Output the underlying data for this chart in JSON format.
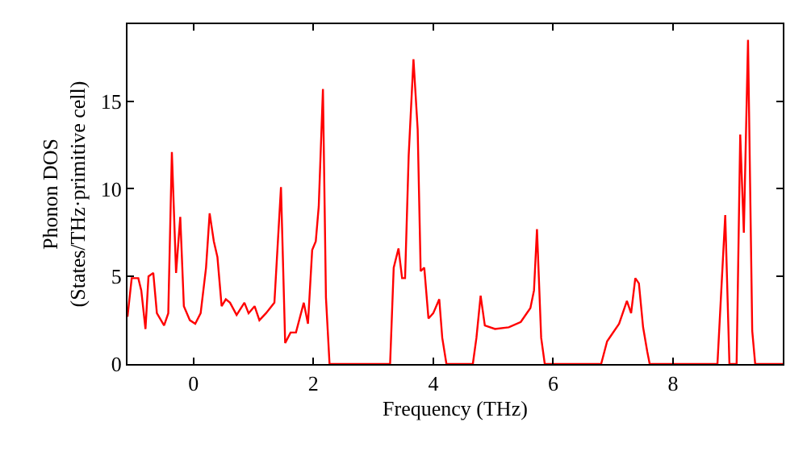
{
  "chart_data": {
    "type": "line",
    "xlabel": "Frequency (THz)",
    "ylabel": "Phonon DOS\n(States/THz·primitive cell)",
    "xlim": [
      -1.1,
      9.83
    ],
    "ylim": [
      0,
      19.4
    ],
    "xticks": [
      0,
      2,
      4,
      6,
      8
    ],
    "yticks": [
      0,
      5,
      10,
      15
    ],
    "marker": "none",
    "line_style": "solid",
    "series": [
      {
        "color": "#ff0000",
        "x": [
          -1.1,
          -1.03,
          -0.92,
          -0.87,
          -0.8,
          -0.75,
          -0.67,
          -0.61,
          -0.49,
          -0.42,
          -0.36,
          -0.29,
          -0.22,
          -0.16,
          -0.06,
          0.03,
          0.12,
          0.21,
          0.27,
          0.34,
          0.4,
          0.47,
          0.54,
          0.61,
          0.72,
          0.85,
          0.92,
          1.02,
          1.1,
          1.21,
          1.35,
          1.46,
          1.53,
          1.62,
          1.71,
          1.84,
          1.91,
          1.98,
          2.04,
          2.09,
          2.16,
          2.21,
          2.27,
          3.28,
          3.34,
          3.42,
          3.48,
          3.53,
          3.59,
          3.67,
          3.74,
          3.79,
          3.85,
          3.92,
          4.0,
          4.1,
          4.15,
          4.22,
          4.66,
          4.72,
          4.79,
          4.86,
          5.03,
          5.26,
          5.46,
          5.62,
          5.68,
          5.73,
          5.8,
          5.86,
          6.8,
          6.9,
          6.96,
          7.1,
          7.23,
          7.3,
          7.37,
          7.43,
          7.5,
          7.57,
          7.61,
          8.74,
          8.87,
          8.94,
          9.06,
          9.12,
          9.18,
          9.25,
          9.32,
          9.37,
          9.83
        ],
        "values": [
          2.7,
          4.9,
          4.9,
          4.2,
          2.0,
          5.0,
          5.2,
          2.9,
          2.2,
          2.9,
          12.1,
          5.2,
          8.4,
          3.3,
          2.5,
          2.3,
          2.9,
          5.5,
          8.6,
          7.0,
          6.1,
          3.3,
          3.7,
          3.5,
          2.8,
          3.5,
          2.9,
          3.3,
          2.5,
          2.9,
          3.5,
          10.1,
          1.2,
          1.8,
          1.8,
          3.5,
          2.3,
          6.5,
          7.0,
          9.0,
          15.7,
          3.8,
          0,
          0,
          5.5,
          6.6,
          4.9,
          4.9,
          11.9,
          17.4,
          13.4,
          5.3,
          5.5,
          2.6,
          2.9,
          3.7,
          1.5,
          0,
          0,
          1.5,
          3.9,
          2.2,
          2.0,
          2.1,
          2.4,
          3.2,
          4.2,
          7.7,
          1.5,
          0,
          0,
          1.3,
          1.6,
          2.3,
          3.6,
          2.9,
          4.9,
          4.6,
          2.1,
          0.7,
          0,
          0,
          8.5,
          0,
          0,
          13.1,
          7.5,
          18.5,
          1.9,
          0,
          0
        ]
      }
    ]
  }
}
